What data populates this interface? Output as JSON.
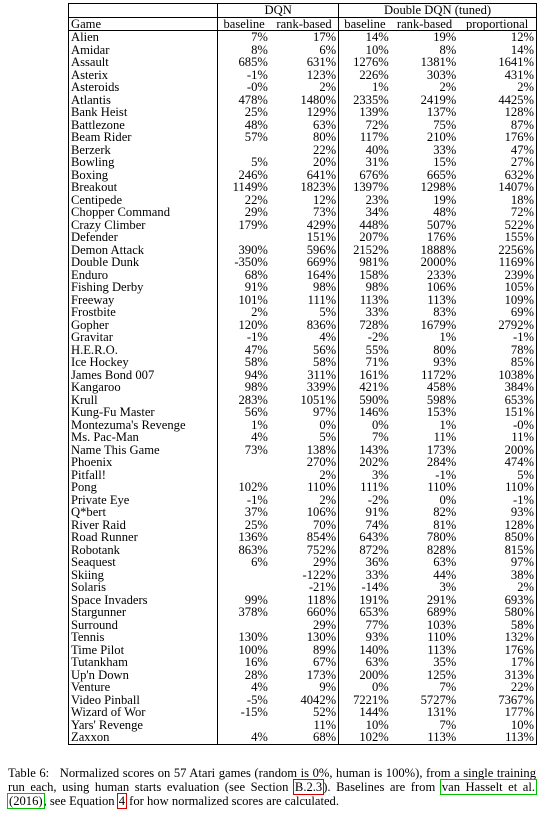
{
  "table": {
    "group_dqn": "DQN",
    "group_ddqn": "Double DQN (tuned)",
    "col_game": "Game",
    "col_baseline_1": "baseline",
    "col_rank_1": "rank-based",
    "col_baseline_2": "baseline",
    "col_rank_2": "rank-based",
    "col_prop_2": "proportional",
    "rows": [
      [
        "Alien",
        "7%",
        "17%",
        "14%",
        "19%",
        "12%",
        [
          4
        ]
      ],
      [
        "Amidar",
        "8%",
        "6%",
        "10%",
        "8%",
        "14%",
        [
          5
        ]
      ],
      [
        "Assault",
        "685%",
        "631%",
        "1276%",
        "1381%",
        "1641%",
        [
          5
        ]
      ],
      [
        "Asterix",
        "-1%",
        "123%",
        "226%",
        "303%",
        "431%",
        [
          5
        ]
      ],
      [
        "Asteroids",
        "-0%",
        "2%",
        "1%",
        "2%",
        "2%",
        [
          4
        ]
      ],
      [
        "Atlantis",
        "478%",
        "1480%",
        "2335%",
        "2419%",
        "4425%",
        [
          5
        ]
      ],
      [
        "Bank Heist",
        "25%",
        "129%",
        "139%",
        "137%",
        "128%",
        [
          3
        ]
      ],
      [
        "Battlezone",
        "48%",
        "63%",
        "72%",
        "75%",
        "87%",
        [
          5
        ]
      ],
      [
        "Beam Rider",
        "57%",
        "80%",
        "117%",
        "210%",
        "176%",
        [
          4
        ]
      ],
      [
        "Berzerk",
        "",
        "22%",
        "40%",
        "33%",
        "47%",
        [
          5
        ]
      ],
      [
        "Bowling",
        "5%",
        "20%",
        "31%",
        "15%",
        "27%",
        [
          3
        ]
      ],
      [
        "Boxing",
        "246%",
        "641%",
        "676%",
        "665%",
        "632%",
        [
          3
        ]
      ],
      [
        "Breakout",
        "1149%",
        "1823%",
        "1397%",
        "1298%",
        "1407%",
        [
          2
        ]
      ],
      [
        "Centipede",
        "22%",
        "12%",
        "23%",
        "19%",
        "18%",
        [
          3
        ]
      ],
      [
        "Chopper Command",
        "29%",
        "73%",
        "34%",
        "48%",
        "72%",
        [
          2
        ]
      ],
      [
        "Crazy Climber",
        "179%",
        "429%",
        "448%",
        "507%",
        "522%",
        [
          5
        ]
      ],
      [
        "Defender",
        "",
        "151%",
        "207%",
        "176%",
        "155%",
        [
          3
        ]
      ],
      [
        "Demon Attack",
        "390%",
        "596%",
        "2152%",
        "1888%",
        "2256%",
        [
          5
        ]
      ],
      [
        "Double Dunk",
        "-350%",
        "669%",
        "981%",
        "2000%",
        "1169%",
        [
          4
        ]
      ],
      [
        "Enduro",
        "68%",
        "164%",
        "158%",
        "233%",
        "239%",
        [
          5
        ]
      ],
      [
        "Fishing Derby",
        "91%",
        "98%",
        "98%",
        "106%",
        "105%",
        [
          4
        ]
      ],
      [
        "Freeway",
        "101%",
        "111%",
        "113%",
        "113%",
        "109%",
        [
          4
        ]
      ],
      [
        "Frostbite",
        "2%",
        "5%",
        "33%",
        "83%",
        "69%",
        [
          4
        ]
      ],
      [
        "Gopher",
        "120%",
        "836%",
        "728%",
        "1679%",
        "2792%",
        [
          5
        ]
      ],
      [
        "Gravitar",
        "-1%",
        "4%",
        "-2%",
        "1%",
        "-1%",
        [
          2
        ]
      ],
      [
        "H.E.R.O.",
        "47%",
        "56%",
        "55%",
        "80%",
        "78%",
        [
          4
        ]
      ],
      [
        "Ice Hockey",
        "58%",
        "58%",
        "71%",
        "93%",
        "85%",
        [
          4
        ]
      ],
      [
        "James Bond 007",
        "94%",
        "311%",
        "161%",
        "1172%",
        "1038%",
        [
          4
        ]
      ],
      [
        "Kangaroo",
        "98%",
        "339%",
        "421%",
        "458%",
        "384%",
        [
          4
        ]
      ],
      [
        "Krull",
        "283%",
        "1051%",
        "590%",
        "598%",
        "653%",
        [
          2
        ]
      ],
      [
        "Kung-Fu Master",
        "56%",
        "97%",
        "146%",
        "153%",
        "151%",
        [
          4
        ]
      ],
      [
        "Montezuma's Revenge",
        "1%",
        "0%",
        "0%",
        "1%",
        "-0%",
        [
          4
        ]
      ],
      [
        "Ms. Pac-Man",
        "4%",
        "5%",
        "7%",
        "11%",
        "11%",
        [
          4
        ]
      ],
      [
        "Name This Game",
        "73%",
        "138%",
        "143%",
        "173%",
        "200%",
        [
          5
        ]
      ],
      [
        "Phoenix",
        "",
        "270%",
        "202%",
        "284%",
        "474%",
        [
          5
        ]
      ],
      [
        "Pitfall!",
        "",
        "2%",
        "3%",
        "-1%",
        "5%",
        [
          5
        ]
      ],
      [
        "Pong",
        "102%",
        "110%",
        "111%",
        "110%",
        "110%",
        [
          3
        ]
      ],
      [
        "Private Eye",
        "-1%",
        "2%",
        "-2%",
        "0%",
        "-1%",
        [
          2
        ]
      ],
      [
        "Q*bert",
        "37%",
        "106%",
        "91%",
        "82%",
        "93%",
        [
          2
        ]
      ],
      [
        "River Raid",
        "25%",
        "70%",
        "74%",
        "81%",
        "128%",
        [
          5
        ]
      ],
      [
        "Road Runner",
        "136%",
        "854%",
        "643%",
        "780%",
        "850%",
        [
          2
        ]
      ],
      [
        "Robotank",
        "863%",
        "752%",
        "872%",
        "828%",
        "815%",
        [
          3
        ]
      ],
      [
        "Seaquest",
        "6%",
        "29%",
        "36%",
        "63%",
        "97%",
        [
          5
        ]
      ],
      [
        "Skiing",
        "",
        "-122%",
        "33%",
        "44%",
        "38%",
        [
          4
        ]
      ],
      [
        "Solaris",
        "",
        "-21%",
        "-14%",
        "3%",
        "2%",
        [
          4
        ]
      ],
      [
        "Space Invaders",
        "99%",
        "118%",
        "191%",
        "291%",
        "693%",
        [
          5
        ]
      ],
      [
        "Stargunner",
        "378%",
        "660%",
        "653%",
        "689%",
        "580%",
        [
          4
        ]
      ],
      [
        "Surround",
        "",
        "29%",
        "77%",
        "103%",
        "58%",
        [
          4
        ]
      ],
      [
        "Tennis",
        "130%",
        "130%",
        "93%",
        "110%",
        "132%",
        [
          5
        ]
      ],
      [
        "Time Pilot",
        "100%",
        "89%",
        "140%",
        "113%",
        "176%",
        [
          5
        ]
      ],
      [
        "Tutankham",
        "16%",
        "67%",
        "63%",
        "35%",
        "17%",
        [
          2
        ]
      ],
      [
        "Up'n Down",
        "28%",
        "173%",
        "200%",
        "125%",
        "313%",
        [
          5
        ]
      ],
      [
        "Venture",
        "4%",
        "9%",
        "0%",
        "7%",
        "22%",
        [
          5
        ]
      ],
      [
        "Video Pinball",
        "-5%",
        "4042%",
        "7221%",
        "5727%",
        "7367%",
        [
          5
        ]
      ],
      [
        "Wizard of Wor",
        "-15%",
        "52%",
        "144%",
        "131%",
        "177%",
        [
          5
        ]
      ],
      [
        "Yars' Revenge",
        "",
        "11%",
        "10%",
        "7%",
        "10%",
        [
          2
        ]
      ],
      [
        "Zaxxon",
        "4%",
        "68%",
        "102%",
        "113%",
        "113%",
        [
          5
        ]
      ]
    ]
  },
  "caption": {
    "label": "Table 6:",
    "text_a": "Normalized scores on 57 Atari games (random is 0%, human is 100%), from a single training run each, using human starts evaluation (see Section ",
    "section_ref": "B.2.3",
    "text_b": "). Baselines are from ",
    "cite_1": "van Hasselt et al.",
    "cite_2": "(2016)",
    "text_c": ", see Equation ",
    "eq_ref": "4",
    "text_d": " for how normalized scores are calculated."
  }
}
